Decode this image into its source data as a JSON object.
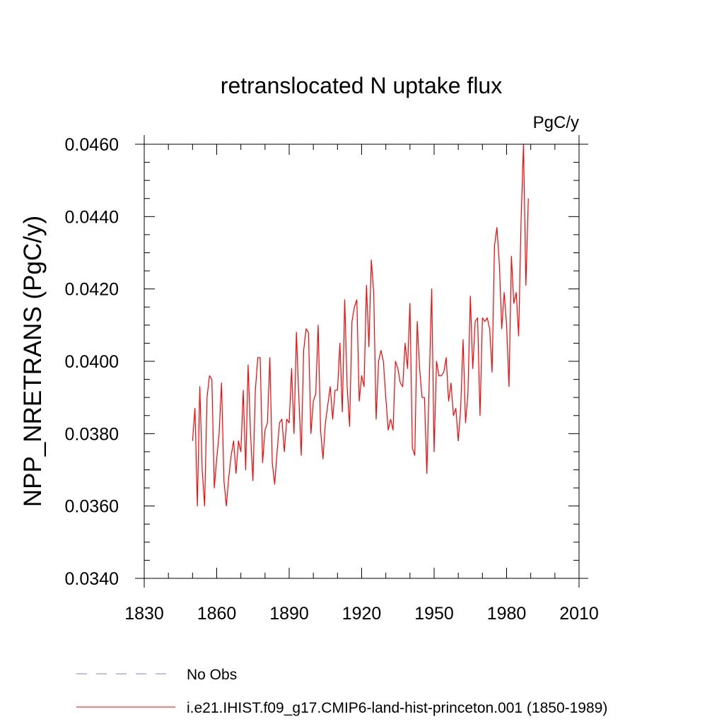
{
  "chart_data": {
    "type": "line",
    "title": "retranslocated N uptake flux",
    "units": "PgC/y",
    "ylabel": "NPP_NRETRANS  (PgC/y)",
    "xlabel": "",
    "xlim": [
      1830,
      2010
    ],
    "ylim": [
      0.034,
      0.046
    ],
    "x_ticks": [
      1830,
      1860,
      1890,
      1920,
      1950,
      1980,
      2010
    ],
    "x_tick_labels": [
      "1830",
      "1860",
      "1890",
      "1920",
      "1950",
      "1980",
      "2010"
    ],
    "y_ticks": [
      0.034,
      0.036,
      0.038,
      0.04,
      0.042,
      0.044,
      0.046
    ],
    "y_tick_labels": [
      "0.0340",
      "0.0360",
      "0.0380",
      "0.0400",
      "0.0420",
      "0.0440",
      "0.0460"
    ],
    "grid": false,
    "legend_position": "bottom",
    "legend": [
      {
        "label": "No Obs",
        "color": "#8a7fc0",
        "dash": "dashed"
      },
      {
        "label": "i.e21.IHIST.f09_g17.CMIP6-land-hist-princeton.001 (1850-1989)",
        "color": "#ff0000",
        "dash": "solid"
      }
    ],
    "series": [
      {
        "name": "i.e21.IHIST.f09_g17.CMIP6-land-hist-princeton.001 (1850-1989)",
        "color": "#ff0000",
        "x_start": 1850,
        "x_step": 1,
        "values": [
          0.0378,
          0.0387,
          0.036,
          0.0393,
          0.037,
          0.036,
          0.039,
          0.0396,
          0.0395,
          0.0365,
          0.0373,
          0.038,
          0.0394,
          0.0367,
          0.036,
          0.0368,
          0.0374,
          0.0378,
          0.0369,
          0.0378,
          0.0375,
          0.0392,
          0.037,
          0.0399,
          0.038,
          0.0367,
          0.0392,
          0.0401,
          0.0401,
          0.0372,
          0.0381,
          0.0383,
          0.0401,
          0.0372,
          0.0366,
          0.0375,
          0.0383,
          0.0384,
          0.0375,
          0.0384,
          0.0383,
          0.0398,
          0.038,
          0.0408,
          0.039,
          0.0374,
          0.0403,
          0.0409,
          0.0408,
          0.038,
          0.0389,
          0.0391,
          0.041,
          0.0381,
          0.0373,
          0.0383,
          0.0388,
          0.0393,
          0.0384,
          0.0392,
          0.0392,
          0.0405,
          0.0386,
          0.0417,
          0.0393,
          0.0382,
          0.0411,
          0.0415,
          0.0417,
          0.0389,
          0.0396,
          0.0393,
          0.0421,
          0.0404,
          0.0428,
          0.0419,
          0.0384,
          0.04,
          0.0403,
          0.04,
          0.039,
          0.0381,
          0.0384,
          0.0381,
          0.04,
          0.0398,
          0.0394,
          0.0393,
          0.0405,
          0.0398,
          0.0416,
          0.0376,
          0.0374,
          0.0411,
          0.0398,
          0.039,
          0.039,
          0.0369,
          0.0395,
          0.042,
          0.0375,
          0.04,
          0.0396,
          0.0396,
          0.0397,
          0.0401,
          0.0389,
          0.0394,
          0.0385,
          0.0387,
          0.0378,
          0.0387,
          0.0406,
          0.0383,
          0.0391,
          0.0418,
          0.0398,
          0.0411,
          0.0412,
          0.0385,
          0.0412,
          0.0411,
          0.0412,
          0.0409,
          0.0397,
          0.0432,
          0.0437,
          0.0427,
          0.0409,
          0.0419,
          0.041,
          0.0393,
          0.0429,
          0.0416,
          0.0419,
          0.0407,
          0.0439,
          0.046,
          0.0421,
          0.0445
        ]
      }
    ]
  }
}
